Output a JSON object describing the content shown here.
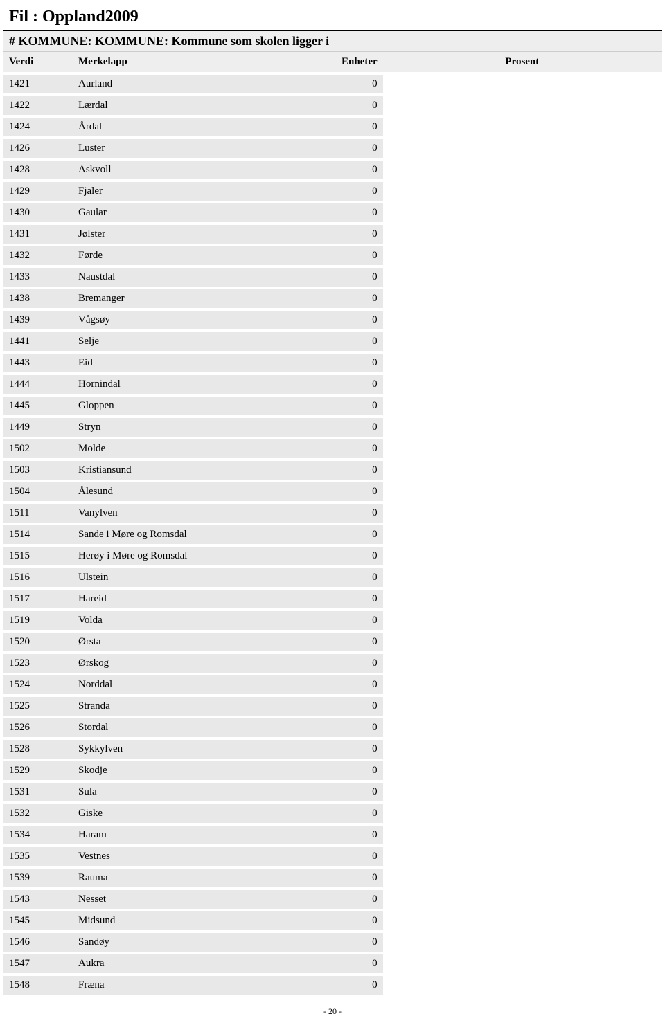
{
  "file_label_prefix": "Fil : ",
  "file_name": "Oppland2009",
  "section_prefix": "# ",
  "section_title": "KOMMUNE: KOMMUNE: Kommune som skolen ligger i",
  "columns": {
    "verdi": "Verdi",
    "merkelapp": "Merkelapp",
    "enheter": "Enheter",
    "prosent": "Prosent"
  },
  "rows": [
    {
      "verdi": "1421",
      "merkelapp": "Aurland",
      "enheter": "0"
    },
    {
      "verdi": "1422",
      "merkelapp": "Lærdal",
      "enheter": "0"
    },
    {
      "verdi": "1424",
      "merkelapp": "Årdal",
      "enheter": "0"
    },
    {
      "verdi": "1426",
      "merkelapp": "Luster",
      "enheter": "0"
    },
    {
      "verdi": "1428",
      "merkelapp": "Askvoll",
      "enheter": "0"
    },
    {
      "verdi": "1429",
      "merkelapp": "Fjaler",
      "enheter": "0"
    },
    {
      "verdi": "1430",
      "merkelapp": "Gaular",
      "enheter": "0"
    },
    {
      "verdi": "1431",
      "merkelapp": "Jølster",
      "enheter": "0"
    },
    {
      "verdi": "1432",
      "merkelapp": "Førde",
      "enheter": "0"
    },
    {
      "verdi": "1433",
      "merkelapp": "Naustdal",
      "enheter": "0"
    },
    {
      "verdi": "1438",
      "merkelapp": "Bremanger",
      "enheter": "0"
    },
    {
      "verdi": "1439",
      "merkelapp": "Vågsøy",
      "enheter": "0"
    },
    {
      "verdi": "1441",
      "merkelapp": "Selje",
      "enheter": "0"
    },
    {
      "verdi": "1443",
      "merkelapp": "Eid",
      "enheter": "0"
    },
    {
      "verdi": "1444",
      "merkelapp": "Hornindal",
      "enheter": "0"
    },
    {
      "verdi": "1445",
      "merkelapp": "Gloppen",
      "enheter": "0"
    },
    {
      "verdi": "1449",
      "merkelapp": "Stryn",
      "enheter": "0"
    },
    {
      "verdi": "1502",
      "merkelapp": "Molde",
      "enheter": "0"
    },
    {
      "verdi": "1503",
      "merkelapp": "Kristiansund",
      "enheter": "0"
    },
    {
      "verdi": "1504",
      "merkelapp": "Ålesund",
      "enheter": "0"
    },
    {
      "verdi": "1511",
      "merkelapp": "Vanylven",
      "enheter": "0"
    },
    {
      "verdi": "1514",
      "merkelapp": "Sande i Møre og Romsdal",
      "enheter": "0"
    },
    {
      "verdi": "1515",
      "merkelapp": "Herøy i Møre og Romsdal",
      "enheter": "0"
    },
    {
      "verdi": "1516",
      "merkelapp": "Ulstein",
      "enheter": "0"
    },
    {
      "verdi": "1517",
      "merkelapp": "Hareid",
      "enheter": "0"
    },
    {
      "verdi": "1519",
      "merkelapp": "Volda",
      "enheter": "0"
    },
    {
      "verdi": "1520",
      "merkelapp": "Ørsta",
      "enheter": "0"
    },
    {
      "verdi": "1523",
      "merkelapp": "Ørskog",
      "enheter": "0"
    },
    {
      "verdi": "1524",
      "merkelapp": "Norddal",
      "enheter": "0"
    },
    {
      "verdi": "1525",
      "merkelapp": "Stranda",
      "enheter": "0"
    },
    {
      "verdi": "1526",
      "merkelapp": "Stordal",
      "enheter": "0"
    },
    {
      "verdi": "1528",
      "merkelapp": "Sykkylven",
      "enheter": "0"
    },
    {
      "verdi": "1529",
      "merkelapp": "Skodje",
      "enheter": "0"
    },
    {
      "verdi": "1531",
      "merkelapp": "Sula",
      "enheter": "0"
    },
    {
      "verdi": "1532",
      "merkelapp": "Giske",
      "enheter": "0"
    },
    {
      "verdi": "1534",
      "merkelapp": "Haram",
      "enheter": "0"
    },
    {
      "verdi": "1535",
      "merkelapp": "Vestnes",
      "enheter": "0"
    },
    {
      "verdi": "1539",
      "merkelapp": "Rauma",
      "enheter": "0"
    },
    {
      "verdi": "1543",
      "merkelapp": "Nesset",
      "enheter": "0"
    },
    {
      "verdi": "1545",
      "merkelapp": "Midsund",
      "enheter": "0"
    },
    {
      "verdi": "1546",
      "merkelapp": "Sandøy",
      "enheter": "0"
    },
    {
      "verdi": "1547",
      "merkelapp": "Aukra",
      "enheter": "0"
    },
    {
      "verdi": "1548",
      "merkelapp": "Fræna",
      "enheter": "0"
    }
  ],
  "page_number": "- 20 -",
  "styling": {
    "background_color": "#ffffff",
    "row_background": "#e8e8e8",
    "header_background": "#eeeeee",
    "border_color": "#000000",
    "text_color": "#000000",
    "row_separator_color": "#ffffff",
    "font_family": "Times New Roman",
    "title_fontsize": 24,
    "section_fontsize": 18,
    "table_fontsize": 15
  }
}
